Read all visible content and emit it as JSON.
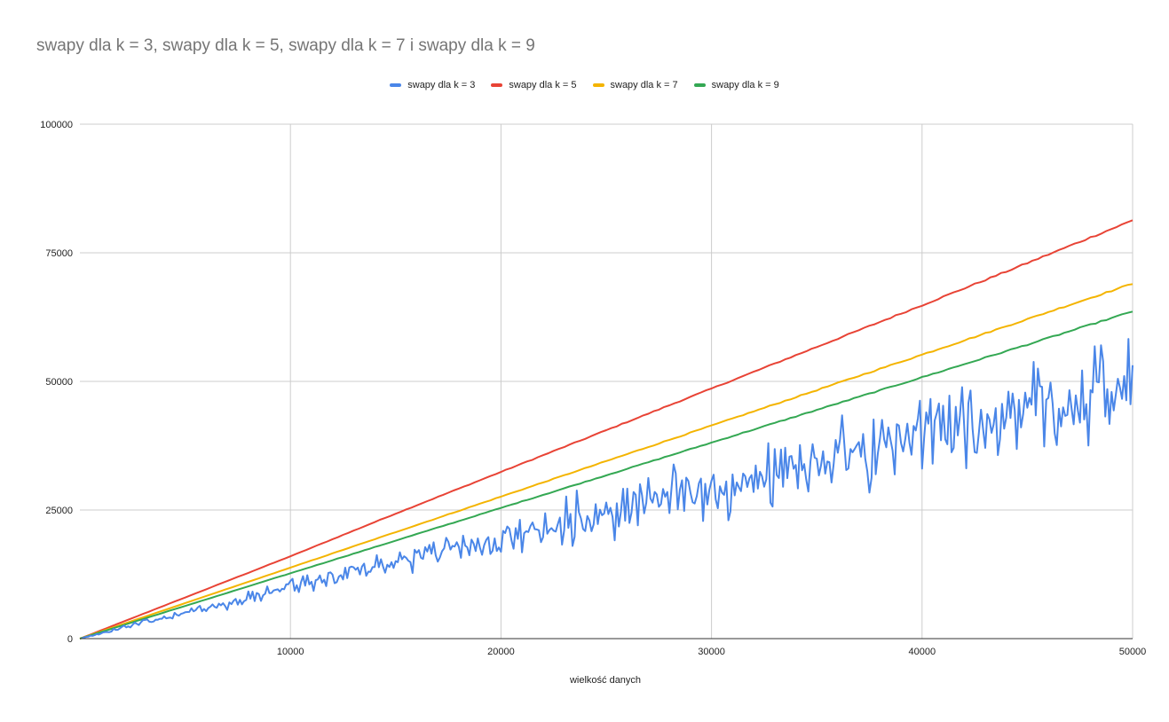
{
  "chart_data": {
    "type": "line",
    "title": "swapy dla k = 3, swapy dla k = 5, swapy dla k = 7 i swapy dla k = 9",
    "xlabel": "wielkość danych",
    "ylabel": "",
    "xlim": [
      0,
      50000
    ],
    "ylim": [
      0,
      100000
    ],
    "x_ticks": [
      "10000",
      "20000",
      "30000",
      "40000",
      "50000"
    ],
    "y_ticks": [
      "0",
      "25000",
      "50000",
      "75000",
      "100000"
    ],
    "grid": true,
    "legend_position": "top",
    "series": [
      {
        "name": "swapy dla k = 3",
        "color": "#4a86e8",
        "x": [
          100,
          2500,
          5000,
          7500,
          10000,
          12500,
          15000,
          17500,
          20000,
          22500,
          25000,
          27500,
          30000,
          32500,
          35000,
          37500,
          40000,
          42500,
          45000,
          47500,
          50000
        ],
        "values": [
          100,
          2600,
          5000,
          7200,
          10000,
          12500,
          15000,
          17500,
          19500,
          22000,
          24000,
          26500,
          30000,
          32000,
          34000,
          36000,
          40000,
          41000,
          44000,
          46000,
          52000
        ]
      },
      {
        "name": "swapy dla k = 5",
        "color": "#e84335",
        "x": [
          0,
          5000,
          10000,
          15000,
          20000,
          25000,
          30000,
          35000,
          40000,
          45000,
          50000
        ],
        "values": [
          0,
          8000,
          16000,
          24300,
          32400,
          40500,
          48600,
          56700,
          64800,
          73000,
          81300
        ]
      },
      {
        "name": "swapy dla k = 7",
        "color": "#f4b400",
        "x": [
          0,
          5000,
          10000,
          15000,
          20000,
          25000,
          30000,
          35000,
          40000,
          45000,
          50000
        ],
        "values": [
          0,
          6900,
          13800,
          20700,
          27600,
          34500,
          41400,
          48300,
          55200,
          62100,
          69000
        ]
      },
      {
        "name": "swapy dla k = 9",
        "color": "#34a853",
        "x": [
          0,
          5000,
          10000,
          15000,
          20000,
          25000,
          30000,
          35000,
          40000,
          45000,
          50000
        ],
        "values": [
          0,
          6350,
          12700,
          19050,
          25400,
          31750,
          38100,
          44450,
          50800,
          57150,
          63600
        ]
      }
    ]
  }
}
